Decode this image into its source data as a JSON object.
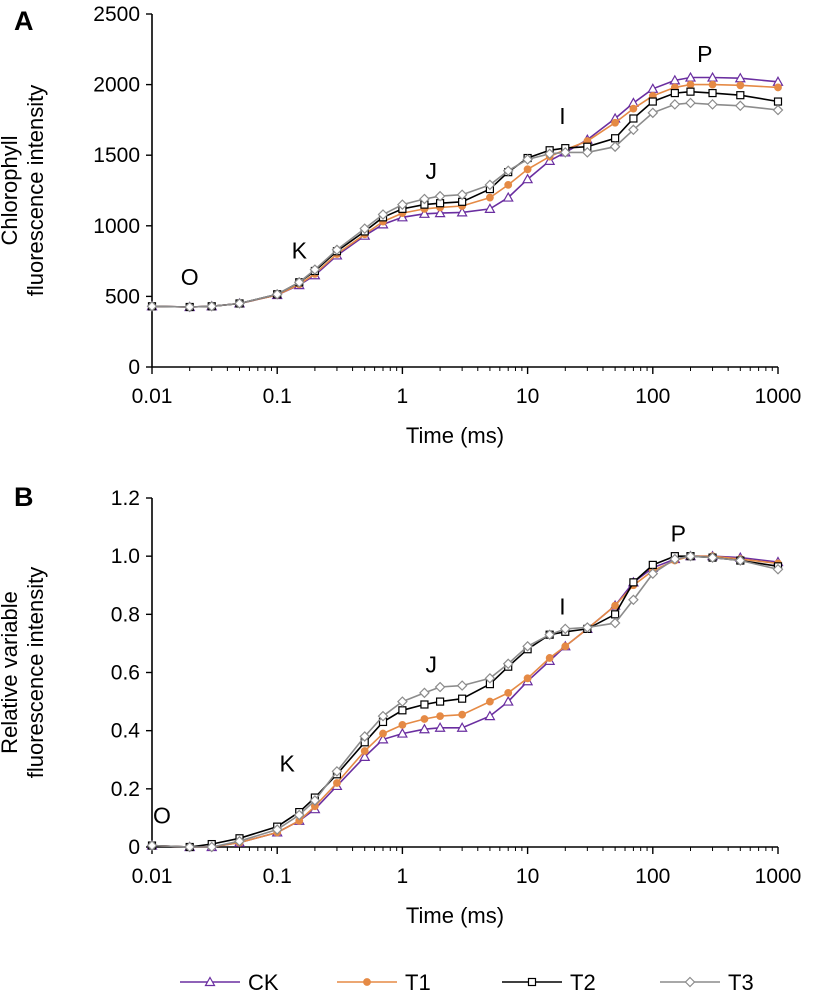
{
  "chart_data": [
    {
      "panel_label": "A",
      "type": "line",
      "xlabel": "Time (ms)",
      "ylabel_lines": [
        "Chlorophyll",
        "fluorescence intensity"
      ],
      "xscale": "log",
      "xlim": [
        0.01,
        1000
      ],
      "ylim": [
        0,
        2500
      ],
      "x_ticks": [
        "0.01",
        "0.1",
        "1",
        "10",
        "100",
        "1000"
      ],
      "y_ticks": [
        "0",
        "500",
        "1000",
        "1500",
        "2000",
        "2500"
      ],
      "phase_labels": [
        {
          "text": "O",
          "x": 0.02,
          "y": 580
        },
        {
          "text": "K",
          "x": 0.15,
          "y": 770
        },
        {
          "text": "J",
          "x": 1.7,
          "y": 1330
        },
        {
          "text": "I",
          "x": 19,
          "y": 1720
        },
        {
          "text": "P",
          "x": 260,
          "y": 2160
        }
      ],
      "series": [
        {
          "name": "CK",
          "x": [
            0.01,
            0.02,
            0.03,
            0.05,
            0.1,
            0.15,
            0.2,
            0.3,
            0.5,
            0.7,
            1,
            1.5,
            2,
            3,
            5,
            7,
            10,
            15,
            20,
            30,
            50,
            70,
            100,
            150,
            200,
            300,
            500,
            1000
          ],
          "y": [
            430,
            425,
            430,
            450,
            510,
            580,
            650,
            790,
            930,
            1010,
            1060,
            1085,
            1090,
            1095,
            1120,
            1200,
            1330,
            1460,
            1520,
            1610,
            1760,
            1870,
            1970,
            2030,
            2050,
            2050,
            2045,
            2020
          ]
        },
        {
          "name": "T1",
          "x": [
            0.01,
            0.02,
            0.03,
            0.05,
            0.1,
            0.15,
            0.2,
            0.3,
            0.5,
            0.7,
            1,
            1.5,
            2,
            3,
            5,
            7,
            10,
            15,
            20,
            30,
            50,
            70,
            100,
            150,
            200,
            300,
            500,
            1000
          ],
          "y": [
            430,
            425,
            430,
            450,
            510,
            585,
            660,
            800,
            940,
            1030,
            1090,
            1120,
            1130,
            1140,
            1200,
            1290,
            1400,
            1490,
            1540,
            1600,
            1730,
            1830,
            1920,
            1980,
            2000,
            2000,
            1995,
            1980
          ]
        },
        {
          "name": "T2",
          "x": [
            0.01,
            0.02,
            0.03,
            0.05,
            0.1,
            0.15,
            0.2,
            0.3,
            0.5,
            0.7,
            1,
            1.5,
            2,
            3,
            5,
            7,
            10,
            15,
            20,
            30,
            50,
            70,
            100,
            150,
            200,
            300,
            500,
            1000
          ],
          "y": [
            430,
            425,
            430,
            450,
            515,
            600,
            680,
            820,
            960,
            1060,
            1120,
            1150,
            1160,
            1170,
            1260,
            1380,
            1480,
            1535,
            1550,
            1560,
            1620,
            1760,
            1880,
            1940,
            1950,
            1940,
            1925,
            1880
          ]
        },
        {
          "name": "T3",
          "x": [
            0.01,
            0.02,
            0.03,
            0.05,
            0.1,
            0.15,
            0.2,
            0.3,
            0.5,
            0.7,
            1,
            1.5,
            2,
            3,
            5,
            7,
            10,
            15,
            20,
            30,
            50,
            70,
            100,
            150,
            200,
            300,
            500,
            1000
          ],
          "y": [
            430,
            425,
            430,
            450,
            515,
            600,
            690,
            830,
            980,
            1080,
            1150,
            1190,
            1210,
            1220,
            1290,
            1390,
            1470,
            1510,
            1520,
            1520,
            1560,
            1680,
            1800,
            1860,
            1870,
            1860,
            1850,
            1820
          ]
        }
      ]
    },
    {
      "panel_label": "B",
      "type": "line",
      "xlabel": "Time (ms)",
      "ylabel_lines": [
        "Relative variable",
        "fluorescence intensity"
      ],
      "xscale": "log",
      "xlim": [
        0.01,
        1000
      ],
      "ylim": [
        0,
        1.2
      ],
      "x_ticks": [
        "0.01",
        "0.1",
        "1",
        "10",
        "100",
        "1000"
      ],
      "y_ticks": [
        "0",
        "0.2",
        "0.4",
        "0.6",
        "0.8",
        "1.0",
        "1.2"
      ],
      "phase_labels": [
        {
          "text": "O",
          "x": 0.012,
          "y": 0.08
        },
        {
          "text": "K",
          "x": 0.12,
          "y": 0.26
        },
        {
          "text": "J",
          "x": 1.7,
          "y": 0.6
        },
        {
          "text": "I",
          "x": 19,
          "y": 0.8
        },
        {
          "text": "P",
          "x": 160,
          "y": 1.05
        }
      ],
      "series": [
        {
          "name": "CK",
          "x": [
            0.01,
            0.02,
            0.03,
            0.05,
            0.1,
            0.15,
            0.2,
            0.3,
            0.5,
            0.7,
            1,
            1.5,
            2,
            3,
            5,
            7,
            10,
            15,
            20,
            30,
            50,
            70,
            100,
            150,
            200,
            300,
            500,
            1000
          ],
          "y": [
            0.005,
            0,
            0,
            0.015,
            0.05,
            0.09,
            0.13,
            0.21,
            0.31,
            0.37,
            0.39,
            0.405,
            0.41,
            0.41,
            0.45,
            0.5,
            0.57,
            0.64,
            0.69,
            0.75,
            0.83,
            0.91,
            0.96,
            0.99,
            1.0,
            1.0,
            0.995,
            0.98
          ]
        },
        {
          "name": "T1",
          "x": [
            0.01,
            0.02,
            0.03,
            0.05,
            0.1,
            0.15,
            0.2,
            0.3,
            0.5,
            0.7,
            1,
            1.5,
            2,
            3,
            5,
            7,
            10,
            15,
            20,
            30,
            50,
            70,
            100,
            150,
            200,
            300,
            500,
            1000
          ],
          "y": [
            0.005,
            0,
            0,
            0.015,
            0.05,
            0.09,
            0.14,
            0.22,
            0.33,
            0.39,
            0.42,
            0.44,
            0.45,
            0.455,
            0.5,
            0.53,
            0.58,
            0.65,
            0.69,
            0.75,
            0.83,
            0.9,
            0.95,
            0.985,
            1.0,
            1.0,
            0.99,
            0.975
          ]
        },
        {
          "name": "T2",
          "x": [
            0.01,
            0.02,
            0.03,
            0.05,
            0.1,
            0.15,
            0.2,
            0.3,
            0.5,
            0.7,
            1,
            1.5,
            2,
            3,
            5,
            7,
            10,
            15,
            20,
            30,
            50,
            70,
            100,
            150,
            200,
            300,
            500,
            1000
          ],
          "y": [
            0.005,
            0,
            0.01,
            0.03,
            0.07,
            0.12,
            0.17,
            0.25,
            0.36,
            0.43,
            0.47,
            0.49,
            0.5,
            0.51,
            0.56,
            0.62,
            0.68,
            0.73,
            0.74,
            0.75,
            0.8,
            0.91,
            0.97,
            1.0,
            1.0,
            0.995,
            0.985,
            0.965
          ]
        },
        {
          "name": "T3",
          "x": [
            0.01,
            0.02,
            0.03,
            0.05,
            0.1,
            0.15,
            0.2,
            0.3,
            0.5,
            0.7,
            1,
            1.5,
            2,
            3,
            5,
            7,
            10,
            15,
            20,
            30,
            50,
            70,
            100,
            150,
            200,
            300,
            500,
            1000
          ],
          "y": [
            0.005,
            0,
            0,
            0.02,
            0.06,
            0.11,
            0.16,
            0.26,
            0.38,
            0.45,
            0.5,
            0.53,
            0.55,
            0.555,
            0.58,
            0.63,
            0.69,
            0.73,
            0.75,
            0.755,
            0.77,
            0.85,
            0.94,
            0.99,
            1.0,
            0.995,
            0.985,
            0.955
          ]
        }
      ]
    }
  ],
  "legend": [
    {
      "name": "CK",
      "color": "#6a2ea0",
      "marker": "triangle-open"
    },
    {
      "name": "T1",
      "color": "#e58a45",
      "marker": "circle-filled"
    },
    {
      "name": "T2",
      "color": "#000000",
      "marker": "square-open"
    },
    {
      "name": "T3",
      "color": "#8c8c8c",
      "marker": "diamond-open"
    }
  ]
}
